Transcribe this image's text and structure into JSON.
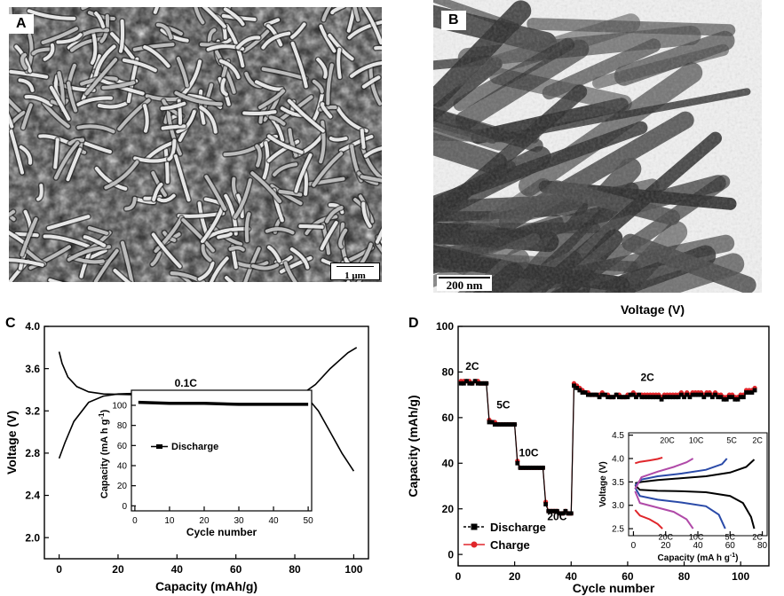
{
  "panels": {
    "a": {
      "label": "A",
      "scale_bar": "1 μm"
    },
    "b": {
      "label": "B",
      "scale_bar": "200 nm"
    },
    "c": {
      "label": "C"
    },
    "d": {
      "label": "D"
    }
  },
  "chart_data": [
    {
      "id": "C-main",
      "type": "line",
      "xlabel": "Capacity (mAh/g)",
      "ylabel": "Voltage (V)",
      "xlim": [
        -5,
        105
      ],
      "ylim": [
        1.8,
        4.0
      ],
      "xticks": [
        "0",
        "20",
        "40",
        "60",
        "80",
        "100"
      ],
      "yticks": [
        "2.0",
        "2.4",
        "2.8",
        "3.2",
        "3.6",
        "4.0"
      ],
      "annotations": [
        "0.1C"
      ],
      "series": [
        {
          "x": [
            0,
            2,
            5,
            10,
            15,
            20,
            30,
            50,
            70,
            84,
            87,
            92,
            98,
            101
          ],
          "y": [
            2.75,
            2.9,
            3.1,
            3.28,
            3.34,
            3.36,
            3.37,
            3.38,
            3.38,
            3.39,
            3.45,
            3.6,
            3.75,
            3.8
          ]
        },
        {
          "x": [
            0,
            1,
            3,
            6,
            10,
            15,
            30,
            50,
            70,
            85,
            88,
            92,
            96,
            100
          ],
          "y": [
            3.76,
            3.65,
            3.52,
            3.43,
            3.38,
            3.36,
            3.35,
            3.34,
            3.33,
            3.3,
            3.2,
            3.0,
            2.8,
            2.63
          ]
        }
      ]
    },
    {
      "id": "C-inset",
      "type": "line",
      "xlabel": "Cycle number",
      "ylabel": "Capacity (mA h g",
      "ylabel_sup": "-1",
      "ylabel_close": ")",
      "xlim": [
        -1,
        51
      ],
      "ylim": [
        -5,
        115
      ],
      "xticks": [
        "0",
        "10",
        "20",
        "30",
        "40",
        "50"
      ],
      "yticks": [
        "0",
        "20",
        "40",
        "60",
        "80",
        "100"
      ],
      "series": [
        {
          "name": "Discharge",
          "x": [
            1,
            10,
            20,
            30,
            40,
            50
          ],
          "y": [
            103,
            102,
            102,
            101,
            101,
            101
          ]
        }
      ]
    },
    {
      "id": "D-main",
      "type": "line",
      "title": "Voltage (V)",
      "xlabel": "Cycle number",
      "ylabel": "Capacity (mAh/g)",
      "xlim": [
        0,
        110
      ],
      "ylim": [
        -5,
        100
      ],
      "xticks": [
        "0",
        "20",
        "40",
        "60",
        "80",
        "100"
      ],
      "yticks": [
        "0",
        "20",
        "40",
        "60",
        "80",
        "100"
      ],
      "annotations": [
        "2C",
        "5C",
        "10C",
        "20C",
        "2C"
      ],
      "series": [
        {
          "name": "Discharge",
          "color": "#000000",
          "values": [
            75,
            75,
            76,
            75,
            75,
            76,
            75,
            75,
            75,
            75,
            58,
            58,
            57,
            57,
            57,
            57,
            57,
            57,
            57,
            57,
            40,
            38,
            38,
            38,
            38,
            38,
            38,
            38,
            38,
            38,
            22,
            19,
            19,
            19,
            19,
            18,
            18,
            19,
            18,
            18,
            74,
            73,
            72,
            71,
            71,
            70,
            70,
            70,
            70,
            69,
            70,
            70,
            69,
            69,
            69,
            70,
            69,
            69,
            69,
            69,
            70,
            70,
            69,
            70,
            69,
            69,
            69,
            69,
            69,
            69,
            69,
            68,
            69,
            69,
            69,
            69,
            69,
            69,
            70,
            69,
            70,
            69,
            70,
            70,
            70,
            70,
            69,
            70,
            70,
            69,
            70,
            69,
            69,
            68,
            68,
            69,
            69,
            68,
            68,
            69,
            69,
            71,
            71,
            71,
            72
          ]
        },
        {
          "name": "Charge",
          "color": "#e0262b",
          "values": [
            76,
            76,
            76,
            76,
            75,
            76,
            76,
            75,
            75,
            75,
            59,
            58,
            58,
            57,
            57,
            57,
            57,
            57,
            57,
            57,
            41,
            38,
            38,
            38,
            38,
            38,
            38,
            38,
            38,
            38,
            23,
            19,
            19,
            19,
            19,
            18,
            18,
            19,
            18,
            18,
            75,
            74,
            73,
            72,
            71,
            71,
            70,
            70,
            70,
            70,
            71,
            70,
            70,
            69,
            69,
            70,
            70,
            69,
            69,
            70,
            70,
            71,
            70,
            70,
            70,
            70,
            70,
            70,
            70,
            70,
            70,
            69,
            70,
            70,
            70,
            70,
            70,
            70,
            71,
            70,
            71,
            70,
            71,
            71,
            71,
            71,
            70,
            71,
            71,
            70,
            71,
            70,
            70,
            69,
            69,
            70,
            70,
            69,
            69,
            70,
            70,
            72,
            72,
            72,
            73
          ]
        }
      ]
    },
    {
      "id": "D-inset",
      "type": "line",
      "xlabel": "Capacity (mA h g",
      "xlabel_sup": "-1",
      "xlabel_close": ")",
      "ylabel": "Voltage (V)",
      "xlim": [
        -3,
        83
      ],
      "ylim": [
        2.35,
        4.55
      ],
      "xticks": [
        "0",
        "20",
        "40",
        "60",
        "80"
      ],
      "yticks": [
        "2.5",
        "3.0",
        "3.5",
        "4.0",
        "4.5"
      ],
      "series": [
        {
          "name": "2C",
          "color": "#000000",
          "charge": {
            "x": [
              1,
              5,
              15,
              30,
              45,
              60,
              70,
              75
            ],
            "y": [
              3.47,
              3.5,
              3.54,
              3.58,
              3.62,
              3.7,
              3.82,
              3.98
            ]
          },
          "discharge": {
            "x": [
              1,
              4,
              15,
              30,
              45,
              60,
              68,
              73,
              75
            ],
            "y": [
              3.43,
              3.33,
              3.31,
              3.3,
              3.28,
              3.2,
              3.05,
              2.75,
              2.5
            ]
          }
        },
        {
          "name": "5C",
          "color": "#2a4aa8",
          "charge": {
            "x": [
              1,
              5,
              15,
              30,
              45,
              55,
              58
            ],
            "y": [
              3.42,
              3.55,
              3.62,
              3.68,
              3.76,
              3.88,
              4.0
            ]
          },
          "discharge": {
            "x": [
              1,
              4,
              15,
              30,
              45,
              53,
              57
            ],
            "y": [
              3.38,
              3.2,
              3.12,
              3.06,
              2.98,
              2.8,
              2.5
            ]
          }
        },
        {
          "name": "10C",
          "color": "#b04aa8",
          "charge": {
            "x": [
              1,
              5,
              15,
              25,
              33,
              37
            ],
            "y": [
              3.35,
              3.6,
              3.72,
              3.82,
              3.92,
              4.0
            ]
          },
          "discharge": {
            "x": [
              1,
              4,
              15,
              25,
              33,
              37
            ],
            "y": [
              3.3,
              3.05,
              2.95,
              2.86,
              2.7,
              2.5
            ]
          }
        },
        {
          "name": "20C",
          "color": "#e0262b",
          "charge": {
            "x": [
              1,
              4,
              10,
              15,
              18
            ],
            "y": [
              3.9,
              3.93,
              3.96,
              3.99,
              4.02
            ]
          },
          "discharge": {
            "x": [
              1,
              4,
              10,
              15,
              18
            ],
            "y": [
              2.9,
              2.78,
              2.7,
              2.6,
              2.5
            ]
          }
        }
      ]
    }
  ]
}
